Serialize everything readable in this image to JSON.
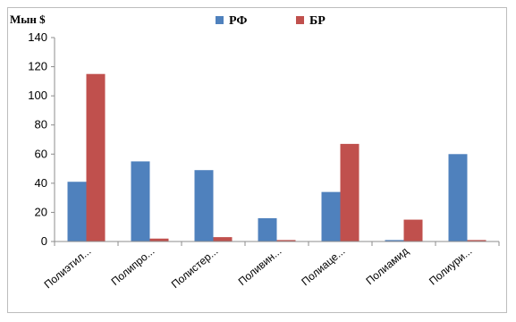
{
  "chart_data": {
    "type": "bar",
    "ylabel": "Мын $",
    "categories": [
      "Полиэтил...",
      "Полипро...",
      "Полистер...",
      "Поливин...",
      "Полиаце...",
      "Полиамид",
      "Полиури..."
    ],
    "series": [
      {
        "name": "РФ",
        "color": "#4F81BD",
        "values": [
          41,
          55,
          49,
          16,
          34,
          1,
          60
        ]
      },
      {
        "name": "БР",
        "color": "#C0504D",
        "values": [
          115,
          2,
          3,
          1,
          67,
          15,
          1
        ]
      }
    ],
    "ylim": [
      0,
      140
    ],
    "yticks": [
      0,
      20,
      40,
      60,
      80,
      100,
      120,
      140
    ],
    "grid": false,
    "legend_position": "top"
  }
}
